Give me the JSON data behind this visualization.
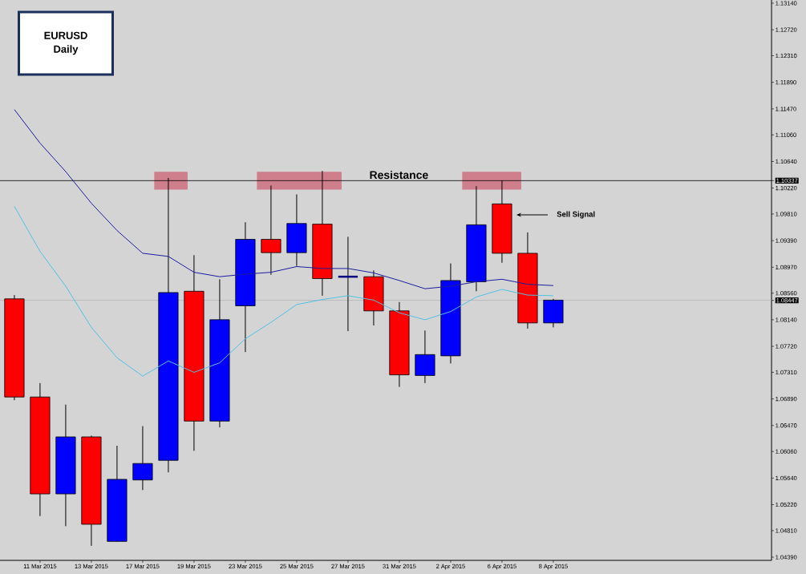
{
  "chart_data": {
    "type": "candlestick",
    "title": "EURUSD",
    "subtitle": "Daily",
    "categories": [
      null,
      "11 Mar 2015",
      null,
      "13 Mar 2015",
      null,
      "17 Mar 2015",
      null,
      "19 Mar 2015",
      null,
      "23 Mar 2015",
      null,
      "25 Mar 2015",
      null,
      "27 Mar 2015",
      null,
      "31 Mar 2015",
      null,
      "2 Apr 2015",
      null,
      "6 Apr 2015",
      null,
      "8 Apr 2015"
    ],
    "ohlc": [
      [
        1.0847,
        1.0853,
        1.0687,
        1.0692
      ],
      [
        1.0692,
        1.0714,
        1.0504,
        1.0539
      ],
      [
        1.0539,
        1.068,
        1.0488,
        1.0629
      ],
      [
        1.0629,
        1.0631,
        1.0457,
        1.0491
      ],
      [
        1.0464,
        1.0615,
        1.0464,
        1.0562
      ],
      [
        1.0561,
        1.0646,
        1.0545,
        1.0587
      ],
      [
        1.0592,
        1.1038,
        1.0573,
        1.0857
      ],
      [
        1.0859,
        1.0916,
        1.0607,
        1.0654
      ],
      [
        1.0654,
        1.0878,
        1.0644,
        1.0814
      ],
      [
        1.0836,
        1.0968,
        1.0763,
        1.0941
      ],
      [
        1.0941,
        1.1026,
        1.0885,
        1.092
      ],
      [
        1.092,
        1.1012,
        1.0899,
        1.0966
      ],
      [
        1.0965,
        1.1049,
        1.0852,
        1.0879
      ],
      [
        1.0882,
        1.0945,
        1.0796,
        1.0882
      ],
      [
        1.0882,
        1.0892,
        1.0805,
        1.0828
      ],
      [
        1.0828,
        1.0842,
        1.0708,
        1.0727
      ],
      [
        1.0726,
        1.0797,
        1.0714,
        1.0759
      ],
      [
        1.0757,
        1.0903,
        1.0745,
        1.0876
      ],
      [
        1.0874,
        1.1025,
        1.0859,
        1.0964
      ],
      [
        1.0997,
        1.1034,
        1.0904,
        1.0919
      ],
      [
        1.0919,
        1.0952,
        1.08,
        1.0809
      ],
      [
        1.0809,
        1.0847,
        1.0802,
        1.0845
      ]
    ],
    "colors": [
      "#ff0000",
      "#ff0000",
      "#0000ff",
      "#ff0000",
      "#0000ff",
      "#0000ff",
      "#0000ff",
      "#ff0000",
      "#0000ff",
      "#0000ff",
      "#ff0000",
      "#0000ff",
      "#ff0000",
      "#000080",
      "#ff0000",
      "#ff0000",
      "#0000ff",
      "#0000ff",
      "#0000ff",
      "#ff0000",
      "#ff0000",
      "#0000ff"
    ],
    "series": [
      {
        "type": "line",
        "color": "#1c1ca0",
        "values": [
          1.1146,
          1.1093,
          1.1048,
          1.0998,
          1.0955,
          1.0919,
          1.0914,
          1.0889,
          1.0882,
          1.0886,
          1.0889,
          1.0898,
          1.0895,
          1.0895,
          1.0888,
          1.0876,
          1.0863,
          1.0867,
          1.0874,
          1.0878,
          1.087,
          1.0868
        ]
      },
      {
        "type": "line",
        "color": "#4ec3e0",
        "values": [
          1.0993,
          1.0922,
          1.0867,
          1.0802,
          1.0754,
          1.0725,
          1.0749,
          1.0731,
          1.0746,
          1.0784,
          1.081,
          1.0838,
          1.0846,
          1.0852,
          1.0845,
          1.0825,
          1.0814,
          1.0827,
          1.085,
          1.0862,
          1.0853,
          1.0852
        ]
      }
    ],
    "ylim": [
      1.0434,
      1.1319
    ],
    "yticks": [
      {
        "value": 1.1314,
        "label": "1.13140"
      },
      {
        "value": 1.1272,
        "label": "1.12720"
      },
      {
        "value": 1.1231,
        "label": "1.12310"
      },
      {
        "value": 1.1189,
        "label": "1.11890"
      },
      {
        "value": 1.1147,
        "label": "1.11470"
      },
      {
        "value": 1.1106,
        "label": "1.11060"
      },
      {
        "value": 1.1064,
        "label": "1.10640"
      },
      1.10337,
      {
        "value": 1.1022,
        "label": "1.10220"
      },
      {
        "value": 1.0981,
        "label": "1.09810"
      },
      {
        "value": 1.0939,
        "label": "1.09390"
      },
      {
        "value": 1.0897,
        "label": "1.08970"
      },
      {
        "value": 1.0856,
        "label": "1.08560"
      },
      1.08447,
      {
        "value": 1.0814,
        "label": "1.08140"
      },
      {
        "value": 1.0772,
        "label": "1.07720"
      },
      {
        "value": 1.0731,
        "label": "1.07310"
      },
      {
        "value": 1.0689,
        "label": "1.06890"
      },
      {
        "value": 1.0647,
        "label": "1.06470"
      },
      {
        "value": 1.0606,
        "label": "1.06060"
      },
      {
        "value": 1.0564,
        "label": "1.05640"
      },
      {
        "value": 1.0522,
        "label": "1.05220"
      },
      {
        "value": 1.0481,
        "label": "1.04810"
      },
      {
        "value": 1.0439,
        "label": "1.04390"
      }
    ],
    "ref_lines": [
      {
        "axis": "y",
        "value": 1.10337,
        "label": "Resistance",
        "color": "#000000"
      },
      {
        "axis": "y",
        "value": 1.08447,
        "color": "#b4b4b4"
      }
    ],
    "annotations": [
      "Sell Signal"
    ]
  }
}
